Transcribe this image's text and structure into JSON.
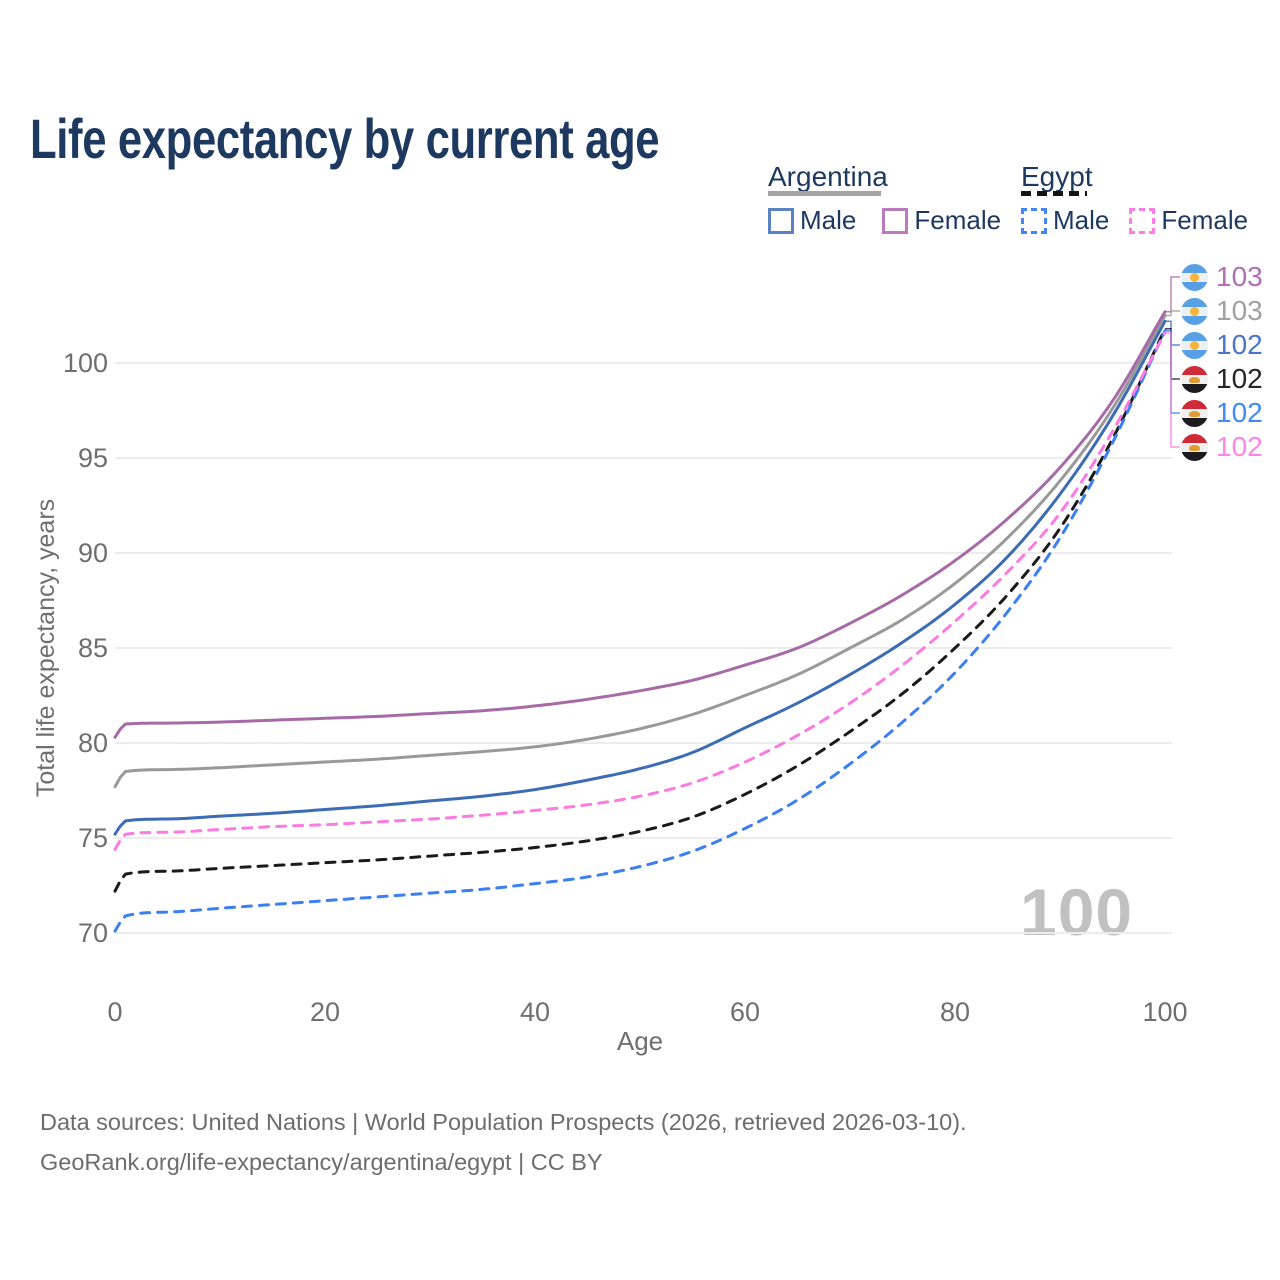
{
  "title": "Life expectancy by current age",
  "watermark": "100",
  "legend": {
    "groups": [
      {
        "label": "Argentina",
        "underline_style": "solid",
        "underline_color": "#a5a5a5",
        "items": [
          {
            "label": "Male",
            "swatch_color": "#5b82c0",
            "swatch_style": "solid"
          },
          {
            "label": "Female",
            "swatch_color": "#bb7abb",
            "swatch_style": "solid"
          }
        ]
      },
      {
        "label": "Egypt",
        "underline_style": "dashed",
        "underline_color": "#141414",
        "items": [
          {
            "label": "Male",
            "swatch_color": "#4285f4",
            "swatch_style": "dashed"
          },
          {
            "label": "Female",
            "swatch_color": "#ff7ce5",
            "swatch_style": "dashed"
          }
        ]
      }
    ]
  },
  "axes": {
    "y_title": "Total life expectancy, years",
    "x_title": "Age"
  },
  "footer": {
    "line1": "Data sources: United Nations | World Population Prospects (2026, retrieved 2026-03-10).",
    "line2": "GeoRank.org/life-expectancy/argentina/egypt | CC BY"
  },
  "chart_data": {
    "type": "line",
    "title": "Life expectancy by current age",
    "xlabel": "Age",
    "ylabel": "Total life expectancy, years",
    "xlim": [
      0,
      100
    ],
    "ylim": [
      70,
      100
    ],
    "x_ticks": [
      0,
      20,
      40,
      60,
      80,
      100
    ],
    "y_ticks": [
      70,
      75,
      80,
      85,
      90,
      95,
      100
    ],
    "grid": "horizontal",
    "legend_position": "top-right",
    "x": [
      0,
      1,
      5,
      10,
      15,
      20,
      25,
      30,
      35,
      40,
      45,
      50,
      55,
      60,
      65,
      70,
      75,
      80,
      85,
      90,
      95,
      100
    ],
    "series": [
      {
        "name": "Argentina Female",
        "country": "Argentina",
        "sex": "Female",
        "color": "#a66ba6",
        "dash": "solid",
        "end_label": "103",
        "end_label_color": "#b06fb4",
        "flag": "argentina",
        "values": [
          80.3,
          81.0,
          81.05,
          81.1,
          81.2,
          81.3,
          81.4,
          81.55,
          81.7,
          81.95,
          82.3,
          82.75,
          83.3,
          84.1,
          85.0,
          86.3,
          87.8,
          89.6,
          91.8,
          94.5,
          98.0,
          102.7
        ]
      },
      {
        "name": "Argentina",
        "country": "Argentina",
        "sex": "Both",
        "color": "#999999",
        "dash": "solid",
        "end_label": "103",
        "end_label_color": "#a0a0a0",
        "flag": "argentina",
        "values": [
          77.7,
          78.5,
          78.6,
          78.7,
          78.85,
          79.0,
          79.15,
          79.35,
          79.55,
          79.8,
          80.2,
          80.75,
          81.5,
          82.5,
          83.6,
          85.0,
          86.5,
          88.4,
          90.8,
          93.8,
          97.6,
          102.5
        ]
      },
      {
        "name": "Argentina Male",
        "country": "Argentina",
        "sex": "Male",
        "color": "#3c6cb4",
        "dash": "solid",
        "end_label": "102",
        "end_label_color": "#4a76c9",
        "flag": "argentina",
        "values": [
          75.2,
          75.9,
          76.0,
          76.15,
          76.3,
          76.5,
          76.7,
          76.95,
          77.2,
          77.55,
          78.05,
          78.65,
          79.5,
          80.8,
          82.1,
          83.6,
          85.3,
          87.3,
          89.8,
          93.1,
          97.2,
          102.2
        ]
      },
      {
        "name": "Egypt",
        "country": "Egypt",
        "sex": "Both",
        "color": "#1a1a1a",
        "dash": "dashed",
        "end_label": "102",
        "end_label_color": "#262626",
        "flag": "egypt",
        "values": [
          72.2,
          73.1,
          73.25,
          73.4,
          73.55,
          73.7,
          73.85,
          74.05,
          74.25,
          74.5,
          74.85,
          75.35,
          76.1,
          77.3,
          78.8,
          80.6,
          82.6,
          85.0,
          87.8,
          91.3,
          96.0,
          101.8
        ]
      },
      {
        "name": "Egypt Male",
        "country": "Egypt",
        "sex": "Male",
        "color": "#3b7ff0",
        "dash": "dashed",
        "end_label": "102",
        "end_label_color": "#4189f5",
        "flag": "egypt",
        "values": [
          70.1,
          70.9,
          71.1,
          71.3,
          71.5,
          71.7,
          71.9,
          72.1,
          72.3,
          72.6,
          72.95,
          73.5,
          74.3,
          75.5,
          77.0,
          78.9,
          81.1,
          83.7,
          86.9,
          90.8,
          95.8,
          101.7
        ]
      },
      {
        "name": "Egypt Female",
        "country": "Egypt",
        "sex": "Female",
        "color": "#fb7ce1",
        "dash": "dashed",
        "end_label": "102",
        "end_label_color": "#ff84e8",
        "flag": "egypt",
        "values": [
          74.4,
          75.2,
          75.3,
          75.45,
          75.6,
          75.7,
          75.85,
          76.0,
          76.2,
          76.45,
          76.75,
          77.2,
          77.9,
          79.0,
          80.4,
          82.1,
          84.1,
          86.4,
          89.0,
          92.1,
          96.4,
          101.6
        ]
      }
    ]
  }
}
